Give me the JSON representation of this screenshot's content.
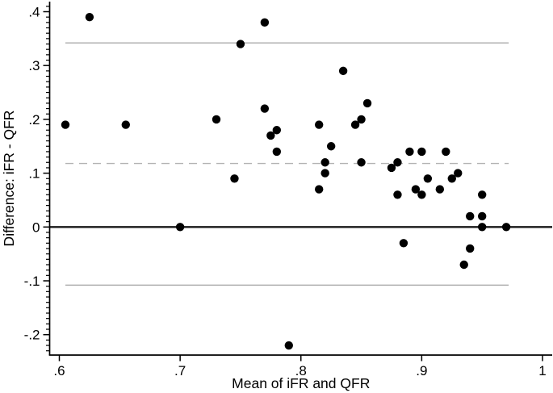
{
  "chart_data": {
    "type": "scatter",
    "title": "",
    "xlabel": "Mean of iFR and QFR",
    "ylabel": "Difference: iFR - QFR",
    "x_axis": {
      "range": [
        0.6,
        1.008
      ],
      "ticks": [
        {
          "value": 0.6,
          "label": ".6"
        },
        {
          "value": 0.7,
          "label": ".7"
        },
        {
          "value": 0.8,
          "label": ".8"
        },
        {
          "value": 0.9,
          "label": ".9"
        },
        {
          "value": 1.0,
          "label": "1"
        }
      ]
    },
    "y_axis": {
      "range": [
        -0.238,
        0.42
      ],
      "ticks": [
        {
          "value": 0.4,
          "label": ".4"
        },
        {
          "value": 0.3,
          "label": ".3"
        },
        {
          "value": 0.2,
          "label": ".2"
        },
        {
          "value": 0.1,
          "label": ".1"
        },
        {
          "value": 0.0,
          "label": "0"
        },
        {
          "value": -0.1,
          "label": "-.1"
        },
        {
          "value": -0.2,
          "label": "-.2"
        }
      ],
      "minor_tick_step": 0.01
    },
    "grid": false,
    "legend": false,
    "reference_lines": {
      "zero_line": {
        "y": 0.0,
        "style": "solid",
        "color": "#1a1a1a",
        "width": 2.3,
        "span": "full"
      },
      "mean_difference_line": {
        "y": 0.118,
        "style": "dashed",
        "color": "#b3b3b3",
        "width": 1.4,
        "x_span": [
          0.605,
          0.972
        ]
      },
      "upper_limit_line": {
        "y": 0.342,
        "style": "solid",
        "color": "#ababab",
        "width": 1.4,
        "x_span": [
          0.605,
          0.972
        ]
      },
      "lower_limit_line": {
        "y": -0.108,
        "style": "solid",
        "color": "#ababab",
        "width": 1.4,
        "x_span": [
          0.605,
          0.972
        ]
      }
    },
    "points": [
      [
        0.605,
        0.19
      ],
      [
        0.625,
        0.39
      ],
      [
        0.655,
        0.19
      ],
      [
        0.7,
        0.0
      ],
      [
        0.73,
        0.2
      ],
      [
        0.745,
        0.09
      ],
      [
        0.75,
        0.34
      ],
      [
        0.77,
        0.38
      ],
      [
        0.77,
        0.22
      ],
      [
        0.775,
        0.17
      ],
      [
        0.78,
        0.18
      ],
      [
        0.78,
        0.14
      ],
      [
        0.79,
        -0.22
      ],
      [
        0.815,
        0.19
      ],
      [
        0.815,
        0.07
      ],
      [
        0.82,
        0.12
      ],
      [
        0.82,
        0.1
      ],
      [
        0.825,
        0.15
      ],
      [
        0.835,
        0.29
      ],
      [
        0.845,
        0.19
      ],
      [
        0.85,
        0.2
      ],
      [
        0.85,
        0.12
      ],
      [
        0.855,
        0.23
      ],
      [
        0.875,
        0.11
      ],
      [
        0.88,
        0.12
      ],
      [
        0.88,
        0.06
      ],
      [
        0.885,
        -0.03
      ],
      [
        0.89,
        0.14
      ],
      [
        0.895,
        0.07
      ],
      [
        0.9,
        0.14
      ],
      [
        0.9,
        0.06
      ],
      [
        0.905,
        0.09
      ],
      [
        0.915,
        0.07
      ],
      [
        0.92,
        0.14
      ],
      [
        0.925,
        0.09
      ],
      [
        0.93,
        0.1
      ],
      [
        0.935,
        -0.07
      ],
      [
        0.94,
        0.02
      ],
      [
        0.94,
        -0.04
      ],
      [
        0.95,
        0.06
      ],
      [
        0.95,
        0.02
      ],
      [
        0.95,
        0.0
      ],
      [
        0.97,
        0.0
      ]
    ],
    "colors": {
      "point": "#000000",
      "axis": "#000000"
    },
    "point_radius": 5.2
  }
}
